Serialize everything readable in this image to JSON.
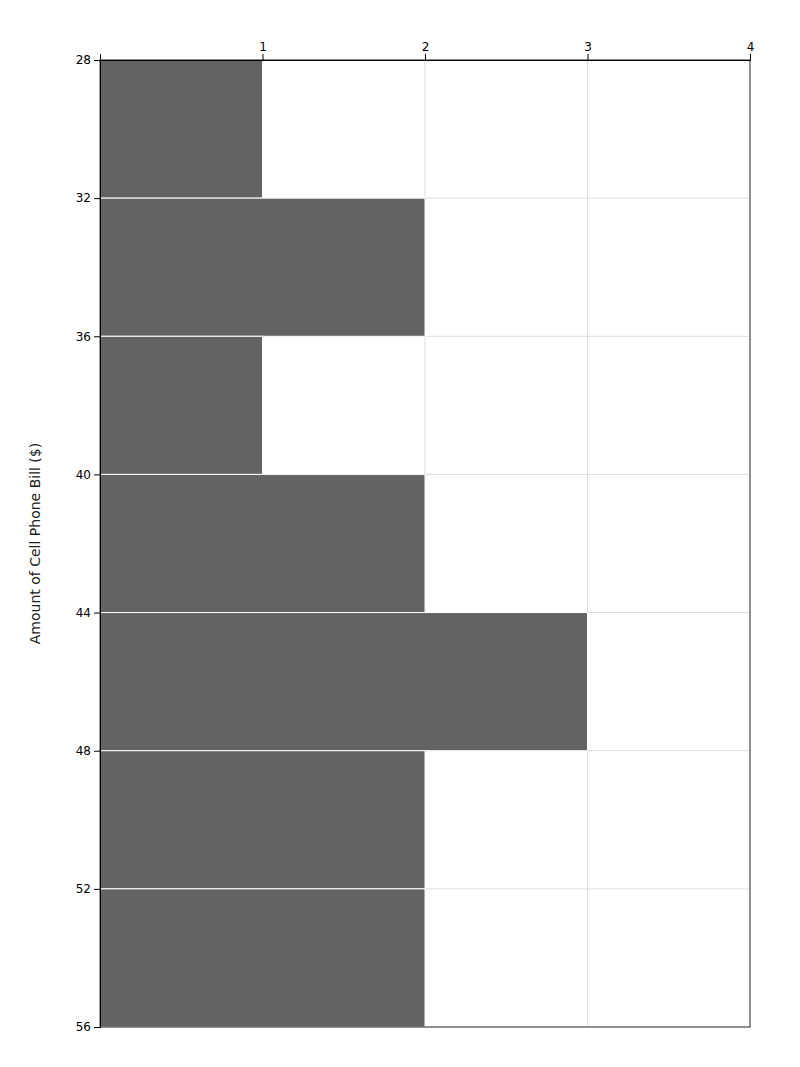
{
  "chart_data": {
    "type": "histogram",
    "orientation": "horizontal",
    "bins": [
      28,
      32,
      36,
      40,
      44,
      48,
      52,
      56
    ],
    "values": [
      1,
      2,
      1,
      2,
      3,
      2,
      2
    ],
    "color": "#636363",
    "ylabel": "Amount of Cell Phone Bill ($)",
    "xlim": [
      0,
      4
    ],
    "xticks": [
      1,
      2,
      3,
      4
    ],
    "ylim": [
      56,
      28
    ],
    "yticks": [
      28,
      32,
      36,
      40,
      44,
      48,
      52,
      56
    ],
    "grid": true
  }
}
